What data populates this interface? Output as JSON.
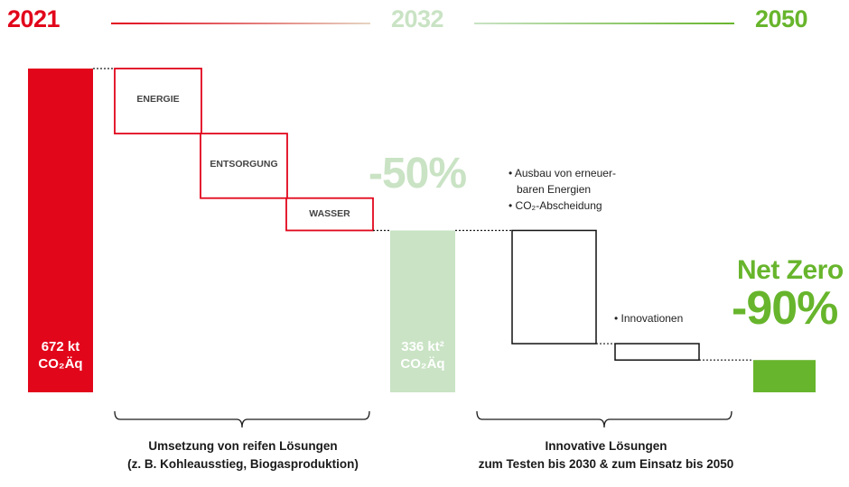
{
  "colors": {
    "red": "#e2061b",
    "light_green": "#c9e3c4",
    "green": "#67b52c",
    "dark": "#1a1a1a"
  },
  "header": {
    "year_start": "2021",
    "year_mid": "2032",
    "year_end": "2050"
  },
  "chart_data": {
    "type": "waterfall",
    "unit": "kt CO₂Äq",
    "bars": [
      {
        "label": "2021",
        "value": 672,
        "text_line1": "672 kt",
        "text_line2": "CO₂Äq",
        "color": "#e2061b"
      },
      {
        "label": "2032",
        "value": 336,
        "text_line1": "336 kt²",
        "text_line2": "CO₂Äq",
        "color": "#c9e3c4"
      },
      {
        "label": "2050",
        "value": 67,
        "color": "#67b52c"
      }
    ],
    "steps_phase1": [
      {
        "label": "ENERGIE",
        "from": 672,
        "to": 537
      },
      {
        "label": "ENTSORGUNG",
        "from": 537,
        "to": 403
      },
      {
        "label": "WASSER",
        "from": 403,
        "to": 336
      }
    ],
    "steps_phase2": [
      {
        "from": 336,
        "to": 101
      },
      {
        "from": 101,
        "to": 67
      }
    ],
    "reductions": {
      "mid": "-50%",
      "end_title": "Net Zero",
      "end": "-90%"
    },
    "bullets_phase2_big": [
      "• Ausbau von erneuer-",
      "baren Energien",
      "• CO₂-Abscheidung"
    ],
    "bullet_phase2_small": "• Innovationen",
    "caption_left": [
      "Umsetzung von reifen Lösungen",
      "(z. B. Kohleausstieg, Biogasproduktion)"
    ],
    "caption_right": [
      "Innovative Lösungen",
      "zum Testen bis 2030 & zum Einsatz bis 2050"
    ]
  }
}
